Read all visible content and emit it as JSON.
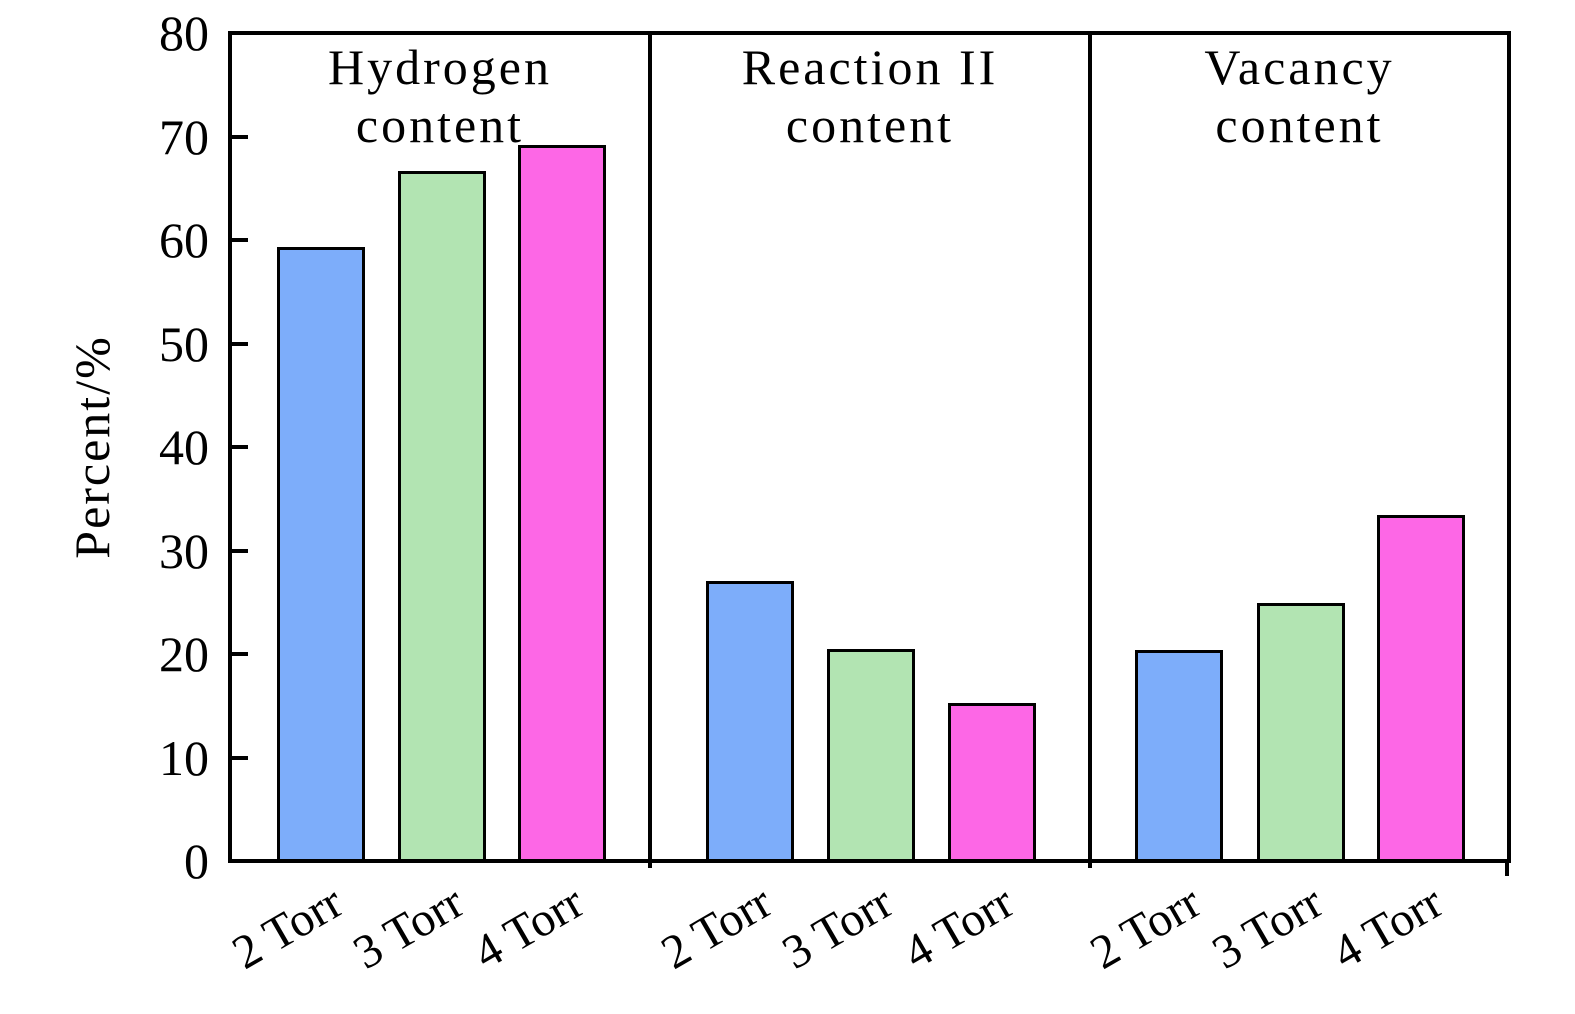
{
  "chart_data": {
    "type": "bar",
    "title": "",
    "ylabel": "Percent/%",
    "ylim": [
      0,
      80
    ],
    "ytick_step": 10,
    "ytick_labels": [
      "0",
      "10",
      "20",
      "30",
      "40",
      "50",
      "60",
      "70",
      "80"
    ],
    "categories": [
      "2 Torr",
      "3 Torr",
      "4 Torr"
    ],
    "bar_colors": [
      "#7dadfa",
      "#b2e4b2",
      "#fd67e6"
    ],
    "bar_edge_color": "#000000",
    "axis_color": "#000000",
    "grid": false,
    "legend": false,
    "panels": [
      {
        "title_lines": [
          "Hydrogen",
          "content"
        ],
        "values": [
          59.2,
          66.5,
          69.0
        ]
      },
      {
        "title_lines": [
          "Reaction II",
          "content"
        ],
        "values": [
          26.9,
          20.3,
          15.1
        ]
      },
      {
        "title_lines": [
          "Vacancy",
          "content"
        ],
        "values": [
          20.2,
          24.8,
          33.3
        ]
      }
    ]
  }
}
